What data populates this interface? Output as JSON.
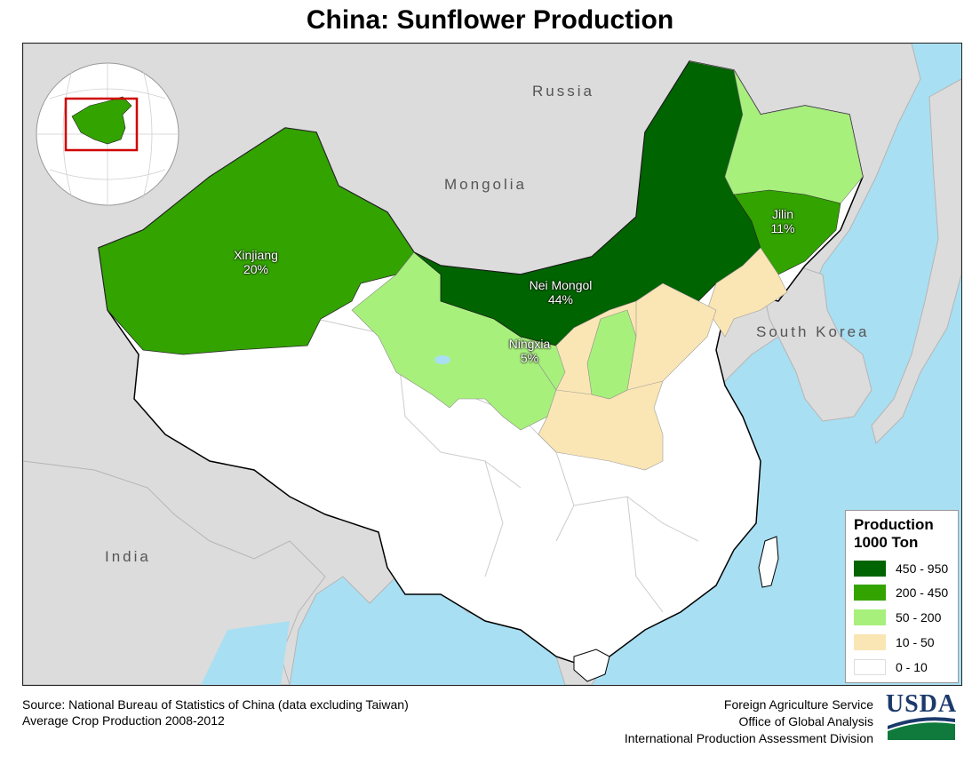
{
  "title": "China: Sunflower Production",
  "countries": {
    "russia": "Russia",
    "mongolia": "Mongolia",
    "south_korea": "South Korea",
    "india": "India"
  },
  "provinces": {
    "xinjiang": {
      "name": "Xinjiang",
      "share": "20%"
    },
    "nei_mongol": {
      "name": "Nei Mongol",
      "share": "44%"
    },
    "ningxia": {
      "name": "Ningxia",
      "share": "5%"
    },
    "jilin": {
      "name": "Jilin",
      "share": "11%"
    }
  },
  "legend": {
    "title_line1": "Production",
    "title_line2": "1000 Ton",
    "classes": [
      {
        "label": "450 - 950",
        "color": "#006400"
      },
      {
        "label": "200 - 450",
        "color": "#33a300"
      },
      {
        "label": "50 - 200",
        "color": "#a8f07c"
      },
      {
        "label": "10 - 50",
        "color": "#fae6b4"
      },
      {
        "label": "0 - 10",
        "color": "#ffffff"
      }
    ]
  },
  "source": {
    "line1": "Source: National Bureau of Statistics of China (data excluding Taiwan)",
    "line2": "Average Crop Production 2008-2012"
  },
  "agency": {
    "line1": "Foreign Agriculture Service",
    "line2": "Office of Global Analysis",
    "line3": "International Production Assessment Division",
    "logo_text": "USDA"
  },
  "colors": {
    "ocean": "#a9dff2",
    "land_other": "#dcdcdc",
    "locator_frame": "#d00000"
  }
}
